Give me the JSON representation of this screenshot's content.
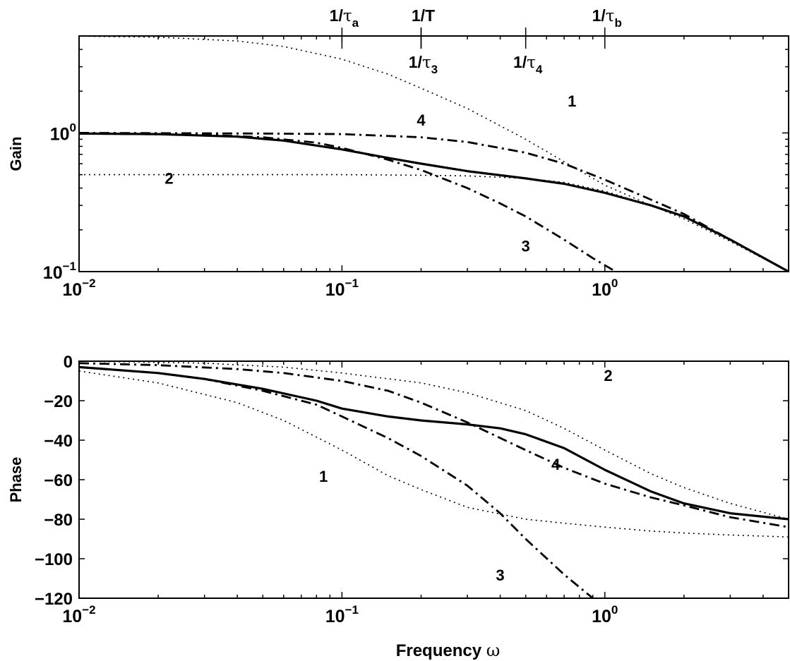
{
  "chart_data": [
    {
      "type": "line",
      "ylabel": "Gain",
      "xscale": "log",
      "yscale": "log",
      "xlim": [
        0.01,
        5
      ],
      "ylim": [
        0.1,
        5
      ],
      "x_ticks": [
        0.01,
        0.1,
        1
      ],
      "x_tick_labels": [
        {
          "base": "10",
          "exp": "−2"
        },
        {
          "base": "10",
          "exp": "−1"
        },
        {
          "base": "10",
          "exp": "0"
        }
      ],
      "y_ticks": [
        0.1,
        1
      ],
      "y_tick_labels": [
        {
          "base": "10",
          "exp": "−1"
        },
        {
          "base": "10",
          "exp": "0"
        }
      ],
      "top_markers": [
        {
          "x": 0.1,
          "base": "1/",
          "greek": "τ",
          "sub": "a",
          "side": "above"
        },
        {
          "x": 0.2,
          "base": "1/T",
          "greek": "",
          "sub": "",
          "side": "above"
        },
        {
          "x": 0.2,
          "base": "1/",
          "greek": "τ",
          "sub": "3",
          "side": "below"
        },
        {
          "x": 0.5,
          "base": "1/",
          "greek": "τ",
          "sub": "4",
          "side": "below"
        },
        {
          "x": 1.0,
          "base": "1/",
          "greek": "τ",
          "sub": "b",
          "side": "above"
        }
      ],
      "series": [
        {
          "style": "solid",
          "x": [
            0.01,
            0.02,
            0.04,
            0.06,
            0.1,
            0.15,
            0.2,
            0.3,
            0.5,
            0.7,
            1.0,
            1.5,
            2,
            3,
            5
          ],
          "y": [
            0.99,
            0.98,
            0.94,
            0.88,
            0.76,
            0.66,
            0.6,
            0.53,
            0.47,
            0.43,
            0.37,
            0.3,
            0.25,
            0.17,
            0.1
          ]
        },
        {
          "label": "1",
          "style": "dotted",
          "x": [
            0.01,
            0.02,
            0.04,
            0.06,
            0.1,
            0.15,
            0.2,
            0.3,
            0.5,
            0.7,
            1.0,
            1.5,
            2,
            3,
            5
          ],
          "y": [
            4.98,
            4.9,
            4.6,
            4.2,
            3.4,
            2.65,
            2.1,
            1.5,
            0.9,
            0.62,
            0.42,
            0.3,
            0.24,
            0.165,
            0.1
          ]
        },
        {
          "label": "2",
          "style": "dotted",
          "x": [
            0.01,
            0.03,
            0.1,
            0.2,
            0.3,
            0.5,
            0.7,
            1.0,
            1.5,
            2,
            3,
            5
          ],
          "y": [
            0.5,
            0.5,
            0.5,
            0.495,
            0.49,
            0.47,
            0.44,
            0.38,
            0.3,
            0.25,
            0.17,
            0.1
          ]
        },
        {
          "label": "3",
          "style": "dashdot",
          "x": [
            0.01,
            0.03,
            0.05,
            0.08,
            0.1,
            0.15,
            0.2,
            0.3,
            0.4,
            0.5,
            0.7,
            0.9,
            1.1
          ],
          "y": [
            0.99,
            0.97,
            0.93,
            0.85,
            0.78,
            0.64,
            0.54,
            0.4,
            0.31,
            0.25,
            0.17,
            0.125,
            0.1
          ]
        },
        {
          "label": "4",
          "style": "dashdot",
          "x": [
            0.01,
            0.05,
            0.1,
            0.2,
            0.3,
            0.5,
            0.7,
            1.0,
            1.5,
            2,
            3,
            5
          ],
          "y": [
            1.0,
            0.99,
            0.98,
            0.93,
            0.86,
            0.72,
            0.6,
            0.46,
            0.33,
            0.26,
            0.17,
            0.1
          ]
        }
      ],
      "annotations": [
        {
          "text": "1",
          "x": 0.75,
          "y": 1.55
        },
        {
          "text": "4",
          "x": 0.2,
          "y": 1.13
        },
        {
          "text": "2",
          "x": 0.022,
          "y": 0.43
        },
        {
          "text": "3",
          "x": 0.5,
          "y": 0.14
        }
      ]
    },
    {
      "type": "line",
      "xlabel": "Frequency ω",
      "ylabel": "Phase",
      "xscale": "log",
      "xlim": [
        0.01,
        5
      ],
      "ylim": [
        -120,
        0
      ],
      "x_ticks": [
        0.01,
        0.1,
        1
      ],
      "x_tick_labels": [
        {
          "base": "10",
          "exp": "−2"
        },
        {
          "base": "10",
          "exp": "−1"
        },
        {
          "base": "10",
          "exp": "0"
        }
      ],
      "y_ticks": [
        0,
        -20,
        -40,
        -60,
        -80,
        -100,
        -120
      ],
      "y_tick_labels": [
        "0",
        "−20",
        "−40",
        "−60",
        "−80",
        "−100",
        "−120"
      ],
      "series": [
        {
          "style": "solid",
          "x": [
            0.01,
            0.02,
            0.03,
            0.05,
            0.08,
            0.1,
            0.15,
            0.2,
            0.3,
            0.4,
            0.5,
            0.7,
            1.0,
            1.5,
            2,
            3,
            5
          ],
          "y": [
            -3,
            -6,
            -9,
            -14,
            -20,
            -24,
            -28,
            -30,
            -32,
            -34,
            -37,
            -44,
            -55,
            -66,
            -72,
            -77,
            -80
          ]
        },
        {
          "label": "1",
          "style": "dotted",
          "x": [
            0.01,
            0.02,
            0.04,
            0.06,
            0.1,
            0.15,
            0.2,
            0.3,
            0.5,
            0.7,
            1.0,
            1.5,
            2,
            3,
            5
          ],
          "y": [
            -5,
            -11,
            -21,
            -30,
            -45,
            -58,
            -65,
            -74,
            -80,
            -82,
            -84,
            -86,
            -87,
            -88,
            -89
          ]
        },
        {
          "label": "2",
          "style": "dotted",
          "x": [
            0.01,
            0.03,
            0.06,
            0.1,
            0.2,
            0.3,
            0.5,
            0.7,
            1.0,
            1.5,
            2,
            3,
            5
          ],
          "y": [
            0,
            -1,
            -3,
            -6,
            -11,
            -16,
            -25,
            -34,
            -45,
            -57,
            -64,
            -72,
            -80
          ]
        },
        {
          "label": "3",
          "style": "dashdot",
          "x": [
            0.01,
            0.02,
            0.03,
            0.05,
            0.08,
            0.1,
            0.15,
            0.2,
            0.3,
            0.4,
            0.5,
            0.7,
            0.9
          ],
          "y": [
            -3,
            -6,
            -9,
            -15,
            -22,
            -28,
            -39,
            -48,
            -63,
            -77,
            -90,
            -108,
            -120
          ]
        },
        {
          "label": "4",
          "style": "dashdot",
          "x": [
            0.01,
            0.02,
            0.04,
            0.06,
            0.1,
            0.15,
            0.2,
            0.3,
            0.5,
            0.7,
            1.0,
            1.5,
            2,
            3,
            5
          ],
          "y": [
            -1,
            -2,
            -4,
            -6,
            -10,
            -15,
            -21,
            -31,
            -45,
            -54,
            -62,
            -69,
            -73,
            -79,
            -84
          ]
        }
      ],
      "annotations": [
        {
          "text": "2",
          "x": 1.03,
          "y": -10
        },
        {
          "text": "1",
          "x": 0.085,
          "y": -61
        },
        {
          "text": "4",
          "x": 0.65,
          "y": -55
        },
        {
          "text": "3",
          "x": 0.4,
          "y": -111
        }
      ]
    }
  ]
}
